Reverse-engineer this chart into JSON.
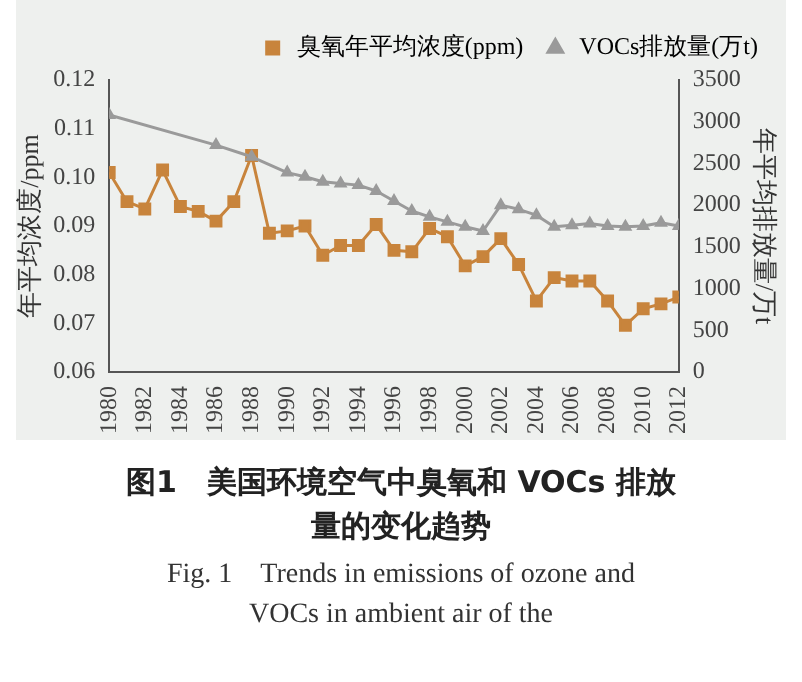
{
  "chart_data": {
    "type": "line",
    "title": "图1　美国环境空气中臭氧和 VOCs 排放量的变化趋势",
    "subtitle": "Fig. 1　Trends in emissions of ozone and VOCs in ambient air of the",
    "ylabel": "年平均浓度/ppm",
    "y2label": "年平均排放量/万t",
    "x": [
      1980,
      1981,
      1982,
      1983,
      1984,
      1985,
      1986,
      1987,
      1988,
      1989,
      1990,
      1991,
      1992,
      1993,
      1994,
      1995,
      1996,
      1997,
      1998,
      1999,
      2000,
      2001,
      2002,
      2003,
      2004,
      2005,
      2006,
      2007,
      2008,
      2009,
      2010,
      2011,
      2012
    ],
    "xlim": [
      1980,
      2012
    ],
    "xticks": [
      1980,
      1982,
      1984,
      1986,
      1988,
      1990,
      1992,
      1994,
      1996,
      1998,
      2000,
      2002,
      2004,
      2006,
      2008,
      2010,
      2012
    ],
    "ylim": [
      0.06,
      0.12
    ],
    "yticks": [
      0.06,
      0.07,
      0.08,
      0.09,
      {
        "value": 0.1,
        "label": "0.10"
      },
      0.11,
      0.12
    ],
    "y2lim": [
      0,
      3500
    ],
    "y2ticks": [
      0,
      500,
      1000,
      1500,
      2000,
      2500,
      3000,
      3500
    ],
    "legend": "top right",
    "grid": false,
    "series": [
      {
        "name": "臭氧年平均浓度(ppm)",
        "color": "#c8843c",
        "marker": "square",
        "values": [
          0.101,
          0.095,
          0.0935,
          0.1015,
          0.094,
          0.093,
          0.091,
          0.095,
          0.1045,
          0.0885,
          0.089,
          0.09,
          0.084,
          0.086,
          0.086,
          0.0903,
          0.085,
          0.0847,
          0.0895,
          0.0878,
          0.0818,
          0.0837,
          0.0874,
          0.0821,
          0.0746,
          0.0794,
          0.0787,
          0.0787,
          0.0746,
          0.0696,
          0.073,
          0.074,
          0.0754
        ]
      },
      {
        "name": "VOCs排放量(万t)",
        "color": "#9a9a9a",
        "marker": "triangle",
        "axis": "y2",
        "values": [
          3080,
          null,
          null,
          null,
          null,
          null,
          2720,
          null,
          2580,
          null,
          2390,
          2340,
          2280,
          2260,
          2240,
          2170,
          2050,
          1930,
          1860,
          1800,
          1740,
          1690,
          2000,
          1950,
          1880,
          1740,
          1760,
          1780,
          1750,
          1740,
          1750,
          1790,
          1750
        ]
      }
    ]
  }
}
